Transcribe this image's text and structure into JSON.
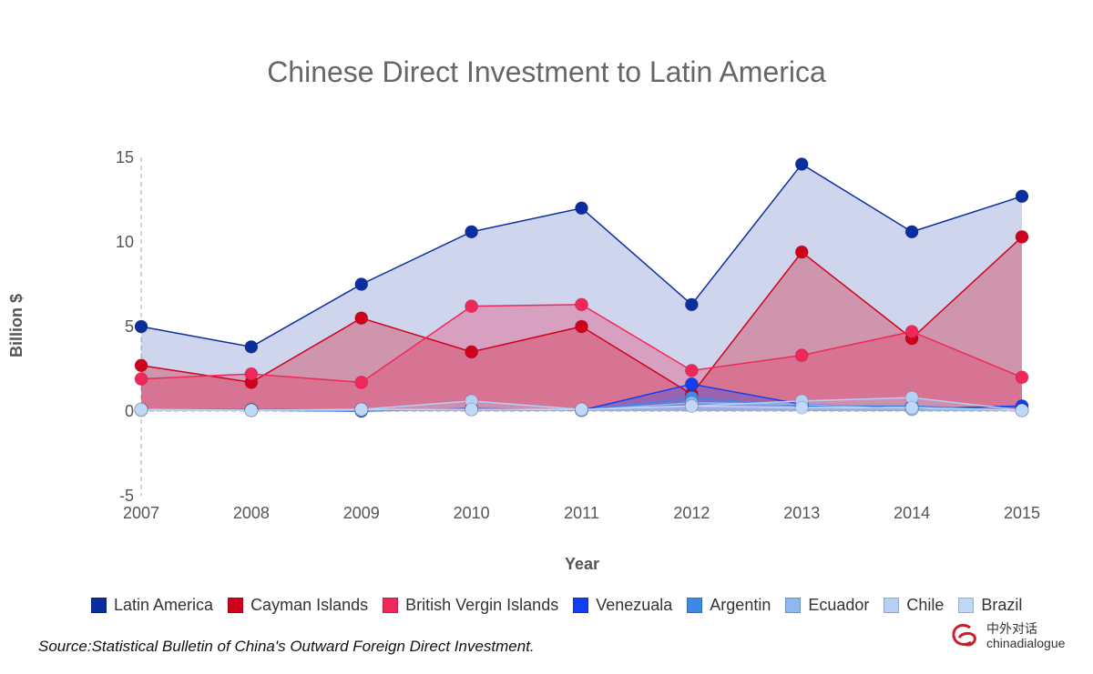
{
  "chart_data": {
    "type": "area",
    "title": "Chinese Direct Investment to Latin America",
    "xlabel": "Year",
    "ylabel": "Billion $",
    "ylim": [
      -5,
      15
    ],
    "yticks": [
      "-5",
      "0",
      "5",
      "10",
      "15"
    ],
    "ytick_values": [
      -5,
      0,
      5,
      10,
      15
    ],
    "categories": [
      "2007",
      "2008",
      "2009",
      "2010",
      "2011",
      "2012",
      "2013",
      "2014",
      "2015"
    ],
    "grid": false,
    "legend_position": "bottom",
    "series": [
      {
        "name": "Latin America",
        "color": "#0a2e9e",
        "values": [
          5.0,
          3.8,
          7.5,
          10.6,
          12.0,
          6.3,
          14.6,
          10.6,
          12.7
        ]
      },
      {
        "name": "Cayman Islands",
        "color": "#d0021b",
        "values": [
          2.7,
          1.7,
          5.5,
          3.5,
          5.0,
          1.0,
          9.4,
          4.3,
          10.3
        ]
      },
      {
        "name": "British Vergin Islands",
        "color": "#f0285a",
        "values": [
          1.9,
          2.2,
          1.7,
          6.2,
          6.3,
          2.4,
          3.3,
          4.7,
          2.0
        ]
      },
      {
        "name": "Venezuala",
        "color": "#0f3ff0",
        "values": [
          0.1,
          0.05,
          0.0,
          0.15,
          0.05,
          1.6,
          0.4,
          0.15,
          0.3
        ]
      },
      {
        "name": "Argentin",
        "color": "#3d8ae6",
        "values": [
          0.1,
          0.1,
          0.1,
          0.1,
          0.05,
          0.8,
          0.3,
          0.3,
          0.05
        ]
      },
      {
        "name": "Ecuador",
        "color": "#8db8f0",
        "values": [
          0.05,
          0.05,
          0.05,
          0.1,
          0.05,
          0.5,
          0.4,
          0.1,
          0.05
        ]
      },
      {
        "name": "Chile",
        "color": "#b4d0f5",
        "values": [
          0.05,
          0.05,
          0.1,
          0.6,
          0.1,
          0.3,
          0.6,
          0.8,
          0.05
        ]
      },
      {
        "name": "Brazil",
        "color": "#c0d8f7",
        "values": [
          0.1,
          0.05,
          0.1,
          0.1,
          0.1,
          0.3,
          0.2,
          0.2,
          0.05
        ]
      }
    ]
  },
  "source": "Source:Statistical Bulletin of China's Outward Foreign Direct Investment.",
  "logo": {
    "line1": "中外对话",
    "line2": "chinadialogue"
  }
}
